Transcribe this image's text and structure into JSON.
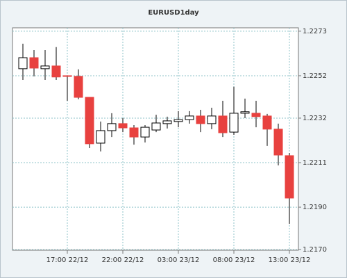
{
  "chart_data": {
    "type": "candlestick",
    "title": "EURUSD1day",
    "categories": [
      null,
      null,
      null,
      null,
      "17:00 22/12",
      null,
      null,
      null,
      null,
      "22:00 22/12",
      null,
      null,
      null,
      null,
      "03:00 23/12",
      null,
      null,
      null,
      null,
      "08:00 23/12",
      null,
      null,
      null,
      null,
      "13:00 23/12"
    ],
    "open": [
      1.22553,
      1.22605,
      1.22553,
      1.22566,
      1.2252,
      1.22517,
      1.22418,
      1.22202,
      1.22261,
      1.22294,
      1.22274,
      1.22231,
      1.22264,
      1.22294,
      1.22304,
      1.22313,
      1.2233,
      1.22294,
      1.2233,
      1.22254,
      1.22343,
      1.22343,
      1.2233,
      1.22268,
      1.22143
    ],
    "high": [
      1.22671,
      1.22641,
      1.22641,
      1.22655,
      1.2252,
      1.2255,
      1.22418,
      1.22304,
      1.22343,
      1.2232,
      1.22287,
      1.22287,
      1.22336,
      1.22327,
      1.22353,
      1.22353,
      1.22359,
      1.22369,
      1.22402,
      1.22468,
      1.22412,
      1.22402,
      1.2234,
      1.22294,
      1.22156
    ],
    "low": [
      1.225,
      1.22517,
      1.225,
      1.225,
      1.22402,
      1.22409,
      1.22179,
      1.22163,
      1.22231,
      1.22254,
      1.22195,
      1.22205,
      1.22254,
      1.22271,
      1.22277,
      1.22294,
      1.22254,
      1.22268,
      1.22231,
      1.22241,
      1.2232,
      1.22277,
      1.22189,
      1.22097,
      1.21821
    ],
    "close": [
      1.22605,
      1.22556,
      1.22566,
      1.22514,
      1.22517,
      1.22418,
      1.22199,
      1.22261,
      1.22294,
      1.22274,
      1.22231,
      1.22277,
      1.22297,
      1.22307,
      1.22313,
      1.2233,
      1.22294,
      1.2233,
      1.22251,
      1.22343,
      1.2235,
      1.22327,
      1.22268,
      1.22146,
      1.21943
    ],
    "up_color": "#ffffff",
    "down_color": "#e8413f",
    "ylim": [
      1.21697,
      1.22746
    ],
    "yticks": [
      {
        "value": 1.217,
        "label": "1.2170"
      },
      {
        "value": 1.219,
        "label": "1.2190"
      },
      1.2211,
      1.2232,
      1.2252,
      1.2273
    ],
    "grid": true
  }
}
